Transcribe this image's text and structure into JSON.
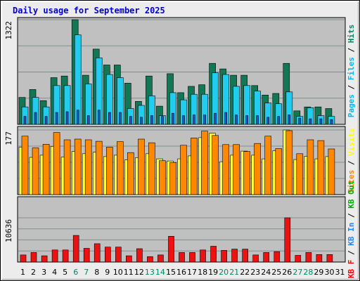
{
  "chart_data": {
    "title": "Daily usage for September 2025",
    "type": "bar",
    "x": [
      "1",
      "2",
      "3",
      "4",
      "5",
      "6",
      "7",
      "8",
      "9",
      "10",
      "11",
      "12",
      "13",
      "14",
      "15",
      "16",
      "17",
      "18",
      "19",
      "20",
      "21",
      "22",
      "23",
      "24",
      "25",
      "26",
      "27",
      "28",
      "29",
      "30",
      "31"
    ],
    "weekend_days": [
      "6",
      "7",
      "13",
      "14",
      "20",
      "21",
      "27",
      "28"
    ],
    "panels": [
      {
        "id": "hits",
        "ymax": 1322,
        "ymax_label": "1322",
        "side_labels": [
          {
            "text": "Pages",
            "color": "#00bbee"
          },
          {
            "text": " / ",
            "color": "#000000"
          },
          {
            "text": "Files",
            "color": "#00bbee"
          },
          {
            "text": " / ",
            "color": "#000000"
          },
          {
            "text": "Hits",
            "color": "#008866"
          }
        ],
        "series": [
          {
            "name": "Hits",
            "color": "#117755",
            "values": [
              340,
              440,
              300,
              590,
              610,
              1322,
              620,
              950,
              750,
              750,
              520,
              290,
              610,
              230,
              640,
              400,
              480,
              500,
              770,
              700,
              620,
              620,
              490,
              370,
              390,
              770,
              170,
              220,
              220,
              200,
              0
            ]
          },
          {
            "name": "Files",
            "color": "#22ccee",
            "values": [
              220,
              340,
              220,
              490,
              490,
              1130,
              510,
              840,
              630,
              590,
              200,
              240,
              360,
              110,
              400,
              310,
              380,
              380,
              650,
              630,
              480,
              490,
              420,
              270,
              260,
              410,
              100,
              210,
              110,
              100,
              0
            ]
          },
          {
            "name": "Pages",
            "color": "#2255cc",
            "values": [
              100,
              150,
              100,
              150,
              160,
              180,
              110,
              180,
              150,
              150,
              100,
              90,
              110,
              100,
              140,
              110,
              120,
              120,
              140,
              150,
              120,
              110,
              110,
              90,
              100,
              120,
              80,
              70,
              70,
              60,
              0
            ]
          }
        ]
      },
      {
        "id": "visits",
        "ymax": 177,
        "ymax_label": "177",
        "side_labels": [
          {
            "text": "Sites",
            "color": "#ff8800"
          },
          {
            "text": " / ",
            "color": "#000000"
          },
          {
            "text": "Visits",
            "color": "#ffff00"
          }
        ],
        "series": [
          {
            "name": "Visits",
            "color": "#ffff33",
            "values": [
              130,
              102,
              108,
              132,
              103,
              118,
              112,
              116,
              104,
              108,
              95,
              101,
              112,
              98,
              92,
              98,
              106,
              156,
              168,
              90,
              108,
              119,
              108,
              98,
              120,
              177,
              96,
              105,
              98,
              104,
              0
            ]
          },
          {
            "name": "Sites",
            "color": "#ff8800",
            "values": [
              160,
              128,
              138,
              170,
              150,
              152,
              150,
              146,
              130,
              145,
              115,
              152,
              142,
              93,
              88,
              135,
              155,
              174,
              162,
              137,
              137,
              118,
              140,
              160,
              126,
              175,
              112,
              150,
              148,
              125,
              0
            ]
          }
        ]
      },
      {
        "id": "kbytes",
        "ymax": 10636,
        "ymax_label": "10636",
        "side_labels": [
          {
            "text": "KB F",
            "color": "#ff0000"
          },
          {
            "text": " / ",
            "color": "#000000"
          },
          {
            "text": "KB In",
            "color": "#2288ff"
          },
          {
            "text": " / ",
            "color": "#000000"
          },
          {
            "text": "KB Out",
            "color": "#00aa00"
          }
        ],
        "series": [
          {
            "name": "KB F",
            "color": "#ee1111",
            "values": [
              1700,
              2300,
              1500,
              2900,
              2900,
              6400,
              3300,
              4400,
              3600,
              3600,
              1500,
              3200,
              1300,
              1700,
              6200,
              2300,
              2300,
              2900,
              3800,
              2800,
              3100,
              3100,
              1700,
              2300,
              2500,
              10636,
              1600,
              2300,
              1800,
              1800,
              0
            ]
          }
        ]
      }
    ]
  }
}
